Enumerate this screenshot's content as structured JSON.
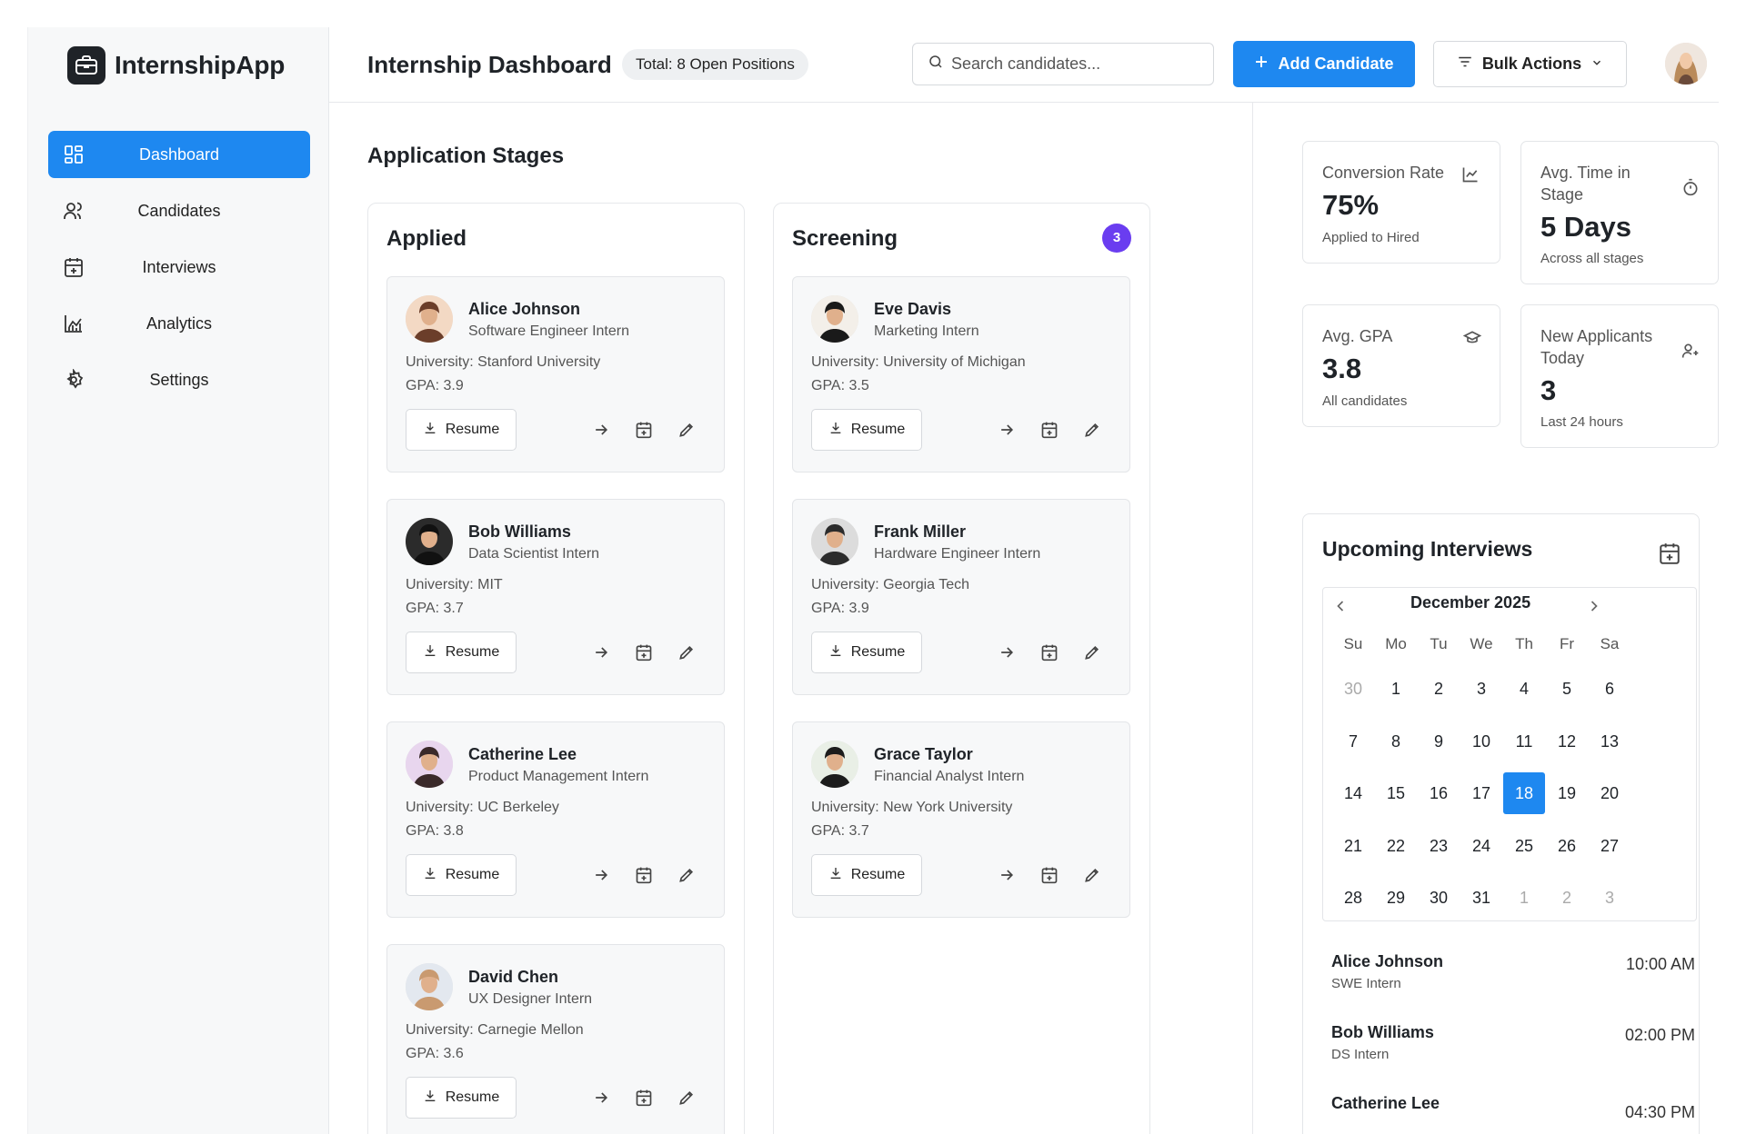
{
  "app": {
    "name": "InternshipApp"
  },
  "colors": {
    "accent": "#1e88f0",
    "badge": "#6a3df0"
  },
  "sidebar": {
    "items": [
      {
        "label": "Dashboard",
        "icon": "dashboard-icon",
        "active": true
      },
      {
        "label": "Candidates",
        "icon": "users-icon"
      },
      {
        "label": "Interviews",
        "icon": "calendar-plus-icon"
      },
      {
        "label": "Analytics",
        "icon": "chart-icon"
      },
      {
        "label": "Settings",
        "icon": "gear-icon"
      }
    ]
  },
  "header": {
    "title": "Internship Dashboard",
    "badge": "Total: 8 Open Positions",
    "search_placeholder": "Search candidates...",
    "add_label": "Add Candidate",
    "bulk_label": "Bulk Actions"
  },
  "main": {
    "section_title": "Application Stages",
    "resume_label": "Resume",
    "columns": [
      {
        "title": "Applied",
        "count": "",
        "cards": [
          {
            "name": "Alice Johnson",
            "role": "Software Engineer Intern",
            "university": "University: Stanford University",
            "gpa": "GPA: 3.9"
          },
          {
            "name": "Bob Williams",
            "role": "Data Scientist Intern",
            "university": "University: MIT",
            "gpa": "GPA: 3.7"
          },
          {
            "name": "Catherine Lee",
            "role": "Product Management Intern",
            "university": "University: UC Berkeley",
            "gpa": "GPA: 3.8"
          },
          {
            "name": "David Chen",
            "role": "UX Designer Intern",
            "university": "University: Carnegie Mellon",
            "gpa": "GPA: 3.6"
          }
        ]
      },
      {
        "title": "Screening",
        "count": "3",
        "cards": [
          {
            "name": "Eve Davis",
            "role": "Marketing Intern",
            "university": "University: University of Michigan",
            "gpa": "GPA: 3.5"
          },
          {
            "name": "Frank Miller",
            "role": "Hardware Engineer Intern",
            "university": "University: Georgia Tech",
            "gpa": "GPA: 3.9"
          },
          {
            "name": "Grace Taylor",
            "role": "Financial Analyst Intern",
            "university": "University: New York University",
            "gpa": "GPA: 3.7"
          }
        ]
      }
    ]
  },
  "stats": [
    {
      "label": "Conversion Rate",
      "value": "75%",
      "sub": "Applied to Hired",
      "icon": "chart-line-icon"
    },
    {
      "label": "Avg. Time in Stage",
      "value": "5 Days",
      "sub": "Across all stages",
      "icon": "timer-icon"
    },
    {
      "label": "Avg. GPA",
      "value": "3.8",
      "sub": "All candidates",
      "icon": "graduation-cap-icon"
    },
    {
      "label": "New Applicants Today",
      "value": "3",
      "sub": "Last 24 hours",
      "icon": "user-plus-icon"
    }
  ],
  "interviews": {
    "title": "Upcoming Interviews",
    "calendar": {
      "month": "December 2025",
      "weekdays": [
        "Su",
        "Mo",
        "Tu",
        "We",
        "Th",
        "Fr",
        "Sa"
      ],
      "days": [
        "30",
        "1",
        "2",
        "3",
        "4",
        "5",
        "6",
        "7",
        "8",
        "9",
        "10",
        "11",
        "12",
        "13",
        "14",
        "15",
        "16",
        "17",
        "18",
        "19",
        "20",
        "21",
        "22",
        "23",
        "24",
        "25",
        "26",
        "27",
        "28",
        "29",
        "30",
        "31",
        "1",
        "2",
        "3"
      ],
      "muted_indices": [
        0,
        32,
        33,
        34
      ],
      "selected_index": 18
    },
    "list": [
      {
        "name": "Alice Johnson",
        "role": "SWE Intern",
        "time": "10:00 AM"
      },
      {
        "name": "Bob Williams",
        "role": "DS Intern",
        "time": "02:00 PM"
      },
      {
        "name": "Catherine Lee",
        "role": "",
        "time": "04:30 PM"
      }
    ]
  }
}
